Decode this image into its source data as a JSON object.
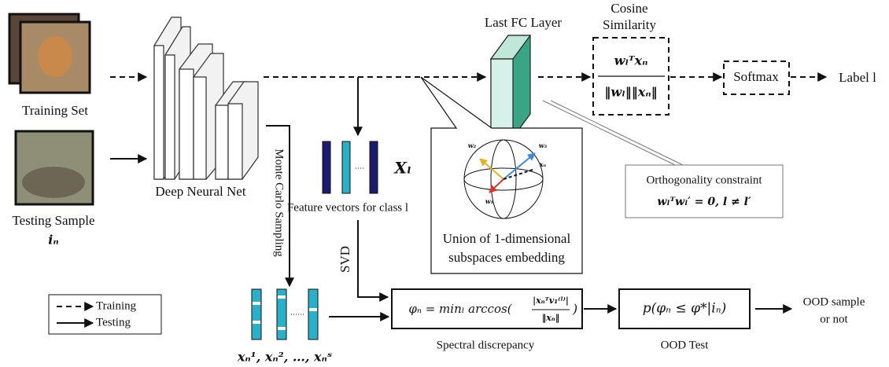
{
  "inputs": {
    "training_set": "Training Set",
    "testing_sample": "Testing Sample",
    "testing_symbol": "iₙ"
  },
  "network": {
    "label": "Deep Neural Net",
    "last_fc": "Last FC Layer"
  },
  "cosine": {
    "title": [
      "Cosine",
      "Similarity"
    ],
    "numerator": "wₗᵀxₙ",
    "denominator": "‖wₗ‖‖xₙ‖"
  },
  "softmax": "Softmax",
  "output_label": "Label l",
  "sampling": "Monte Carlo Sampling",
  "features": {
    "caption": "Feature vectors for class l",
    "symbol": "Xₗ"
  },
  "svd": "SVD",
  "embedding": {
    "caption": [
      "Union of 1-dimensional",
      "subspaces embedding"
    ],
    "vectors": [
      "w₂",
      "w₃",
      "xₙ",
      "w₁"
    ]
  },
  "constraint": {
    "title": "Orthogonality constraint",
    "formula": "wₗᵀwₗ′ = 0, l ≠ l′"
  },
  "legend": [
    "Training",
    "Testing"
  ],
  "samples": "xₙ¹, xₙ², …, xₙˢ",
  "discrepancy": {
    "prefix": "φₙ = minₗ arccos(",
    "numerator": "|xₙᵀv₁⁽ˡ⁾|",
    "denominator": "‖xₙ‖",
    "suffix": ")",
    "caption": "Spectral discrepancy"
  },
  "ood_test": {
    "formula": "p(φₙ ≤ φ*|iₙ)",
    "caption": "OOD Test"
  },
  "result": [
    "OOD sample",
    "or not"
  ]
}
